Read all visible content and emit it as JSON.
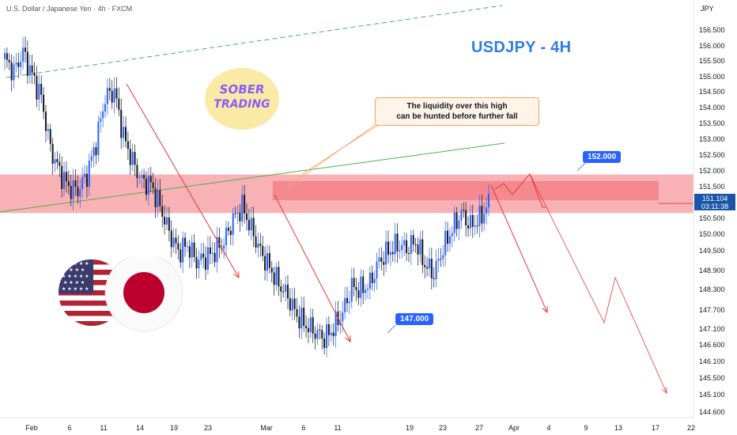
{
  "header": {
    "symbol_title": "U.S. Dollar / Japanese Yen · 4h · FXCM",
    "currency": "JPY"
  },
  "heading": "USDJPY - 4H",
  "annotation": {
    "line1": "The liquidity over this high",
    "line2": "can be hunted before further fall"
  },
  "logo": {
    "line1": "SOBER",
    "line2": "TRADING"
  },
  "callouts": {
    "upper": "152.000",
    "lower": "147.000"
  },
  "current_price": {
    "price": "151.104",
    "countdown": "03:11:38"
  },
  "flags": [
    "us-flag-icon",
    "japan-flag-icon"
  ],
  "colors": {
    "bull": "#2962ff",
    "bear": "#131722",
    "zone": "#f7a5a8",
    "inner_zone": "#f37b84",
    "arrow": "#e53935",
    "trend": "#4caf50",
    "heading": "#2f7de1",
    "callout": "#2962ff"
  },
  "chart_data": {
    "type": "line",
    "title": "USDJPY - 4H",
    "y_axis": {
      "min": 144.6,
      "max": 156.5,
      "ticks": [
        "156.500",
        "156.000",
        "155.500",
        "155.000",
        "154.500",
        "154.000",
        "153.500",
        "153.000",
        "152.500",
        "152.000",
        "151.500",
        "151.000",
        "150.500",
        "150.000",
        "149.500",
        "148.900",
        "148.300",
        "147.700",
        "147.100",
        "146.600",
        "146.100",
        "145.500",
        "145.100",
        "144.600"
      ]
    },
    "x_axis": {
      "ticks": [
        "Feb",
        "6",
        "11",
        "14",
        "19",
        "23",
        "Mar",
        "6",
        "11",
        "19",
        "23",
        "27",
        "Apr",
        "4",
        "9",
        "13",
        "17",
        "22"
      ]
    },
    "series": [
      {
        "values": [
          [
            "Feb 1",
            155.6
          ],
          [
            "Feb 2",
            155.2
          ],
          [
            "Feb 3",
            155.8
          ],
          [
            "Feb 4",
            155.1
          ],
          [
            "Feb 5",
            154.4
          ],
          [
            "Feb 6",
            152.8
          ],
          [
            "Feb 7",
            152.1
          ],
          [
            "Feb 8",
            151.6
          ],
          [
            "Feb 10",
            151.5
          ],
          [
            "Feb 11",
            152.0
          ],
          [
            "Feb 12",
            153.0
          ],
          [
            "Feb 13",
            154.4
          ],
          [
            "Feb 14",
            154.6
          ],
          [
            "Feb 15",
            153.2
          ],
          [
            "Feb 17",
            152.4
          ],
          [
            "Feb 18",
            151.8
          ],
          [
            "Feb 19",
            151.7
          ],
          [
            "Feb 20",
            151.0
          ],
          [
            "Feb 21",
            150.2
          ],
          [
            "Feb 22",
            149.6
          ],
          [
            "Feb 23",
            149.8
          ],
          [
            "Feb 24",
            149.3
          ],
          [
            "Feb 25",
            149.4
          ],
          [
            "Feb 26",
            149.6
          ],
          [
            "Feb 27",
            149.9
          ],
          [
            "Feb 28",
            150.6
          ],
          [
            "Mar 1",
            151.0
          ],
          [
            "Mar 2",
            150.3
          ],
          [
            "Mar 3",
            149.6
          ],
          [
            "Mar 4",
            149.1
          ],
          [
            "Mar 5",
            148.6
          ],
          [
            "Mar 6",
            148.2
          ],
          [
            "Mar 7",
            147.6
          ],
          [
            "Mar 8",
            147.3
          ],
          [
            "Mar 9",
            147.1
          ],
          [
            "Mar 10",
            146.9
          ],
          [
            "Mar 11",
            147.2
          ],
          [
            "Mar 12",
            147.7
          ],
          [
            "Mar 13",
            148.5
          ],
          [
            "Mar 14",
            148.4
          ],
          [
            "Mar 15",
            148.6
          ],
          [
            "Mar 16",
            149.3
          ],
          [
            "Mar 17",
            149.6
          ],
          [
            "Mar 18",
            149.8
          ],
          [
            "Mar 19",
            149.7
          ],
          [
            "Mar 20",
            149.9
          ],
          [
            "Mar 21",
            149.2
          ],
          [
            "Mar 22",
            148.9
          ],
          [
            "Mar 23",
            149.7
          ],
          [
            "Mar 24",
            150.3
          ],
          [
            "Mar 25",
            150.8
          ],
          [
            "Mar 26",
            150.4
          ],
          [
            "Mar 27",
            150.6
          ],
          [
            "Mar 28",
            151.1
          ]
        ]
      }
    ],
    "zones": [
      {
        "from": 150.8,
        "to": 152.0
      },
      {
        "from": 151.2,
        "to": 151.8
      }
    ],
    "annotations": [
      "The liquidity over this high can be hunted before further fall",
      "152.000",
      "147.000"
    ]
  }
}
